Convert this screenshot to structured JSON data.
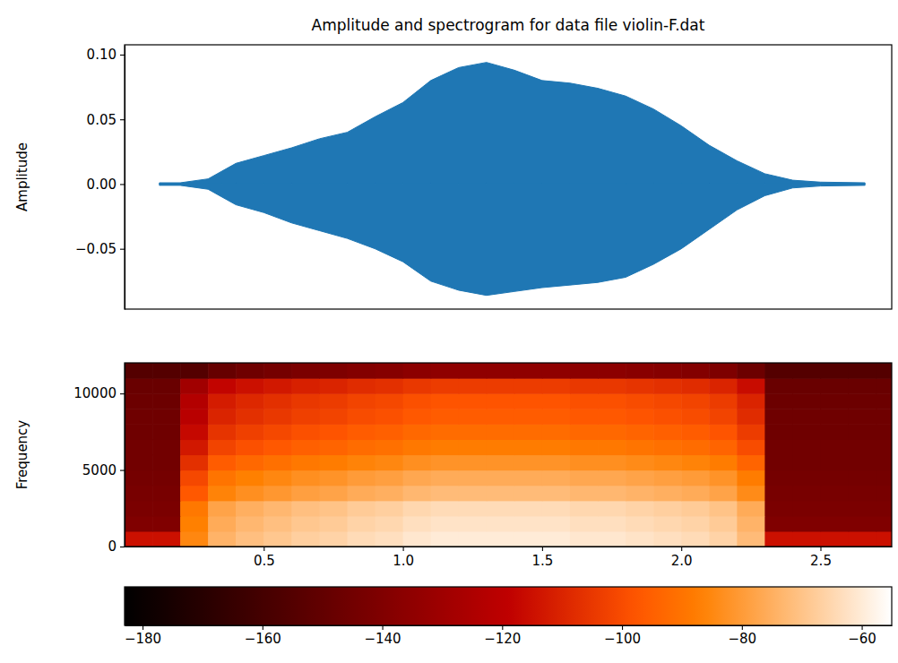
{
  "chart_data": [
    {
      "type": "area",
      "title": "Amplitude and spectrogram for data file violin-F.dat",
      "ylabel": "Amplitude",
      "color": "#1f77b4",
      "x": [
        0.125,
        0.2,
        0.3,
        0.35,
        0.4,
        0.5,
        0.6,
        0.7,
        0.8,
        0.9,
        1.0,
        1.1,
        1.2,
        1.3,
        1.4,
        1.5,
        1.6,
        1.7,
        1.8,
        1.9,
        2.0,
        2.1,
        2.2,
        2.3,
        2.4,
        2.5,
        2.66
      ],
      "upper": [
        0.001,
        0.001,
        0.004,
        0.01,
        0.016,
        0.022,
        0.028,
        0.035,
        0.04,
        0.052,
        0.063,
        0.08,
        0.09,
        0.094,
        0.088,
        0.08,
        0.078,
        0.074,
        0.068,
        0.058,
        0.045,
        0.03,
        0.018,
        0.008,
        0.003,
        0.0015,
        0.001
      ],
      "lower": [
        -0.001,
        -0.001,
        -0.004,
        -0.01,
        -0.016,
        -0.022,
        -0.03,
        -0.036,
        -0.042,
        -0.05,
        -0.06,
        -0.075,
        -0.082,
        -0.086,
        -0.083,
        -0.08,
        -0.078,
        -0.076,
        -0.072,
        -0.062,
        -0.05,
        -0.035,
        -0.02,
        -0.009,
        -0.003,
        -0.0015,
        -0.001
      ],
      "xlim": [
        0,
        2.756
      ],
      "ylim": [
        -0.0966,
        0.1076
      ],
      "yticks": [
        {
          "value": -0.05,
          "label": "−0.05"
        },
        {
          "value": 0,
          "label": "0.00"
        },
        0.05,
        {
          "value": 0.1,
          "label": "0.10"
        }
      ],
      "tick_labels": "y"
    },
    {
      "type": "heatmap",
      "ylabel": "Frequency",
      "x_bins": [
        0,
        0.1,
        0.2,
        0.3,
        0.4,
        0.5,
        0.6,
        0.7,
        0.8,
        0.9,
        1,
        1.1,
        1.2,
        1.3,
        1.4,
        1.5,
        1.6,
        1.7,
        1.8,
        1.9,
        2,
        2.1,
        2.2,
        2.3,
        2.4,
        2.5,
        2.6,
        2.7,
        2.8
      ],
      "y_bins": [
        0,
        1000,
        2000,
        3000,
        4000,
        5000,
        6000,
        7000,
        8000,
        9000,
        10000,
        11000,
        12000
      ],
      "cells": [
        [
          -115,
          -115,
          -85,
          -74,
          -71,
          -69,
          -67,
          -66,
          -64,
          -63,
          -61,
          -60,
          -60,
          -60,
          -60,
          -60,
          -61,
          -61,
          -62,
          -63,
          -64,
          -66,
          -72,
          -115,
          -115,
          -115,
          -115,
          -115
        ],
        [
          -140,
          -140,
          -87,
          -76,
          -73,
          -71,
          -69,
          -68,
          -66,
          -65,
          -63,
          -62,
          -62,
          -62,
          -62,
          -62,
          -63,
          -63,
          -64,
          -65,
          -66,
          -68,
          -74,
          -140,
          -140,
          -140,
          -140,
          -140
        ],
        [
          -142,
          -142,
          -89,
          -78,
          -75,
          -73,
          -71,
          -70,
          -68,
          -67,
          -65,
          -64,
          -64,
          -64,
          -64,
          -64,
          -65,
          -65,
          -66,
          -67,
          -68,
          -70,
          -76,
          -142,
          -142,
          -142,
          -142,
          -142
        ],
        [
          -143,
          -143,
          -97,
          -86,
          -83,
          -81,
          -79,
          -78,
          -76,
          -75,
          -73,
          -72,
          -72,
          -72,
          -72,
          -72,
          -73,
          -73,
          -74,
          -75,
          -76,
          -78,
          -84,
          -143,
          -143,
          -143,
          -143,
          -143
        ],
        [
          -144,
          -144,
          -101,
          -90,
          -87,
          -85,
          -83,
          -82,
          -80,
          -79,
          -77,
          -76,
          -76,
          -76,
          -76,
          -76,
          -77,
          -77,
          -78,
          -79,
          -80,
          -82,
          -88,
          -144,
          -144,
          -144,
          -144,
          -144
        ],
        [
          -145,
          -145,
          -107,
          -96,
          -93,
          -91,
          -89,
          -88,
          -86,
          -85,
          -83,
          -82,
          -82,
          -82,
          -82,
          -82,
          -83,
          -83,
          -84,
          -85,
          -86,
          -88,
          -94,
          -145,
          -145,
          -145,
          -145,
          -145
        ],
        [
          -145,
          -145,
          -113,
          -102,
          -99,
          -97,
          -95,
          -94,
          -92,
          -91,
          -89,
          -88,
          -88,
          -88,
          -88,
          -88,
          -89,
          -89,
          -90,
          -91,
          -92,
          -94,
          -100,
          -145,
          -145,
          -145,
          -145,
          -145
        ],
        [
          -146,
          -146,
          -117,
          -106,
          -103,
          -101,
          -99,
          -98,
          -96,
          -95,
          -93,
          -92,
          -92,
          -92,
          -92,
          -92,
          -93,
          -93,
          -94,
          -95,
          -96,
          -98,
          -104,
          -146,
          -146,
          -146,
          -146,
          -146
        ],
        [
          -146,
          -146,
          -121,
          -110,
          -107,
          -105,
          -103,
          -102,
          -100,
          -99,
          -97,
          -96,
          -96,
          -96,
          -96,
          -96,
          -97,
          -97,
          -98,
          -99,
          -100,
          -102,
          -108,
          -146,
          -146,
          -146,
          -146,
          -146
        ],
        [
          -147,
          -147,
          -123,
          -112,
          -109,
          -107,
          -105,
          -104,
          -102,
          -101,
          -99,
          -98,
          -98,
          -98,
          -98,
          -98,
          -99,
          -99,
          -100,
          -101,
          -102,
          -104,
          -110,
          -147,
          -147,
          -147,
          -147,
          -147
        ],
        [
          -148,
          -148,
          -129,
          -118,
          -115,
          -113,
          -111,
          -110,
          -108,
          -107,
          -105,
          -104,
          -104,
          -104,
          -104,
          -104,
          -105,
          -105,
          -106,
          -107,
          -108,
          -110,
          -116,
          -148,
          -148,
          -148,
          -148,
          -148
        ],
        [
          -155,
          -155,
          -155,
          -149,
          -146,
          -144,
          -142,
          -141,
          -139,
          -138,
          -136,
          -135,
          -135,
          -135,
          -135,
          -135,
          -136,
          -136,
          -137,
          -138,
          -139,
          -141,
          -147,
          -155,
          -155,
          -155,
          -155,
          -155
        ]
      ],
      "xlim": [
        0,
        2.756
      ],
      "ylim": [
        0,
        12000
      ],
      "xticks": [
        0.5,
        {
          "value": 1,
          "label": "1.0"
        },
        1.5,
        {
          "value": 2,
          "label": "2.0"
        },
        2.5
      ],
      "yticks": [
        0,
        5000,
        10000
      ],
      "colorbar": {
        "range": [
          -183,
          -55
        ],
        "ticks": [
          {
            "value": -180,
            "label": "−180"
          },
          {
            "value": -160,
            "label": "−160"
          },
          {
            "value": -140,
            "label": "−140"
          },
          {
            "value": -120,
            "label": "−120"
          },
          {
            "value": -100,
            "label": "−100"
          },
          {
            "value": -80,
            "label": "−80"
          },
          {
            "value": -60,
            "label": "−60"
          }
        ]
      }
    }
  ]
}
